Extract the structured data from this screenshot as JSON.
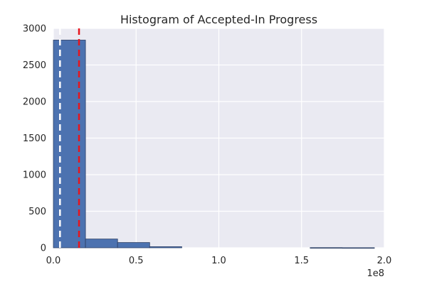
{
  "chart_data": {
    "type": "bar",
    "title": "Histogram of Accepted-In Progress",
    "xlabel": "",
    "ylabel": "",
    "x_offset_label": "1e8",
    "xlim": [
      0,
      2.0
    ],
    "ylim": [
      0,
      3000
    ],
    "x_ticks": [
      0.0,
      0.5,
      1.0,
      1.5,
      2.0
    ],
    "x_tick_labels": [
      "0.0",
      "0.5",
      "1.0",
      "1.5",
      "2.0"
    ],
    "y_ticks": [
      0,
      500,
      1000,
      1500,
      2000,
      2500,
      3000
    ],
    "y_tick_labels": [
      "0",
      "500",
      "1000",
      "1500",
      "2000",
      "2500",
      "3000"
    ],
    "bins": [
      {
        "start": 0.0,
        "end": 0.194,
        "count": 2840
      },
      {
        "start": 0.194,
        "end": 0.388,
        "count": 120
      },
      {
        "start": 0.388,
        "end": 0.582,
        "count": 72
      },
      {
        "start": 0.582,
        "end": 0.776,
        "count": 15
      },
      {
        "start": 0.776,
        "end": 0.97,
        "count": 0
      },
      {
        "start": 0.97,
        "end": 1.164,
        "count": 0
      },
      {
        "start": 1.164,
        "end": 1.358,
        "count": 0
      },
      {
        "start": 1.358,
        "end": 1.552,
        "count": 0
      },
      {
        "start": 1.552,
        "end": 1.746,
        "count": 2
      },
      {
        "start": 1.746,
        "end": 1.94,
        "count": 1
      }
    ],
    "reference_lines": [
      {
        "x": 0.04,
        "color": "#ffffff",
        "style": "dashed"
      },
      {
        "x": 0.155,
        "color": "#e8141c",
        "style": "dashed"
      }
    ],
    "grid": true,
    "colors": {
      "background": "#eaeaf2",
      "bar_fill": "#4c72b0",
      "bar_edge": "#2c3f66",
      "grid": "#ffffff"
    }
  }
}
